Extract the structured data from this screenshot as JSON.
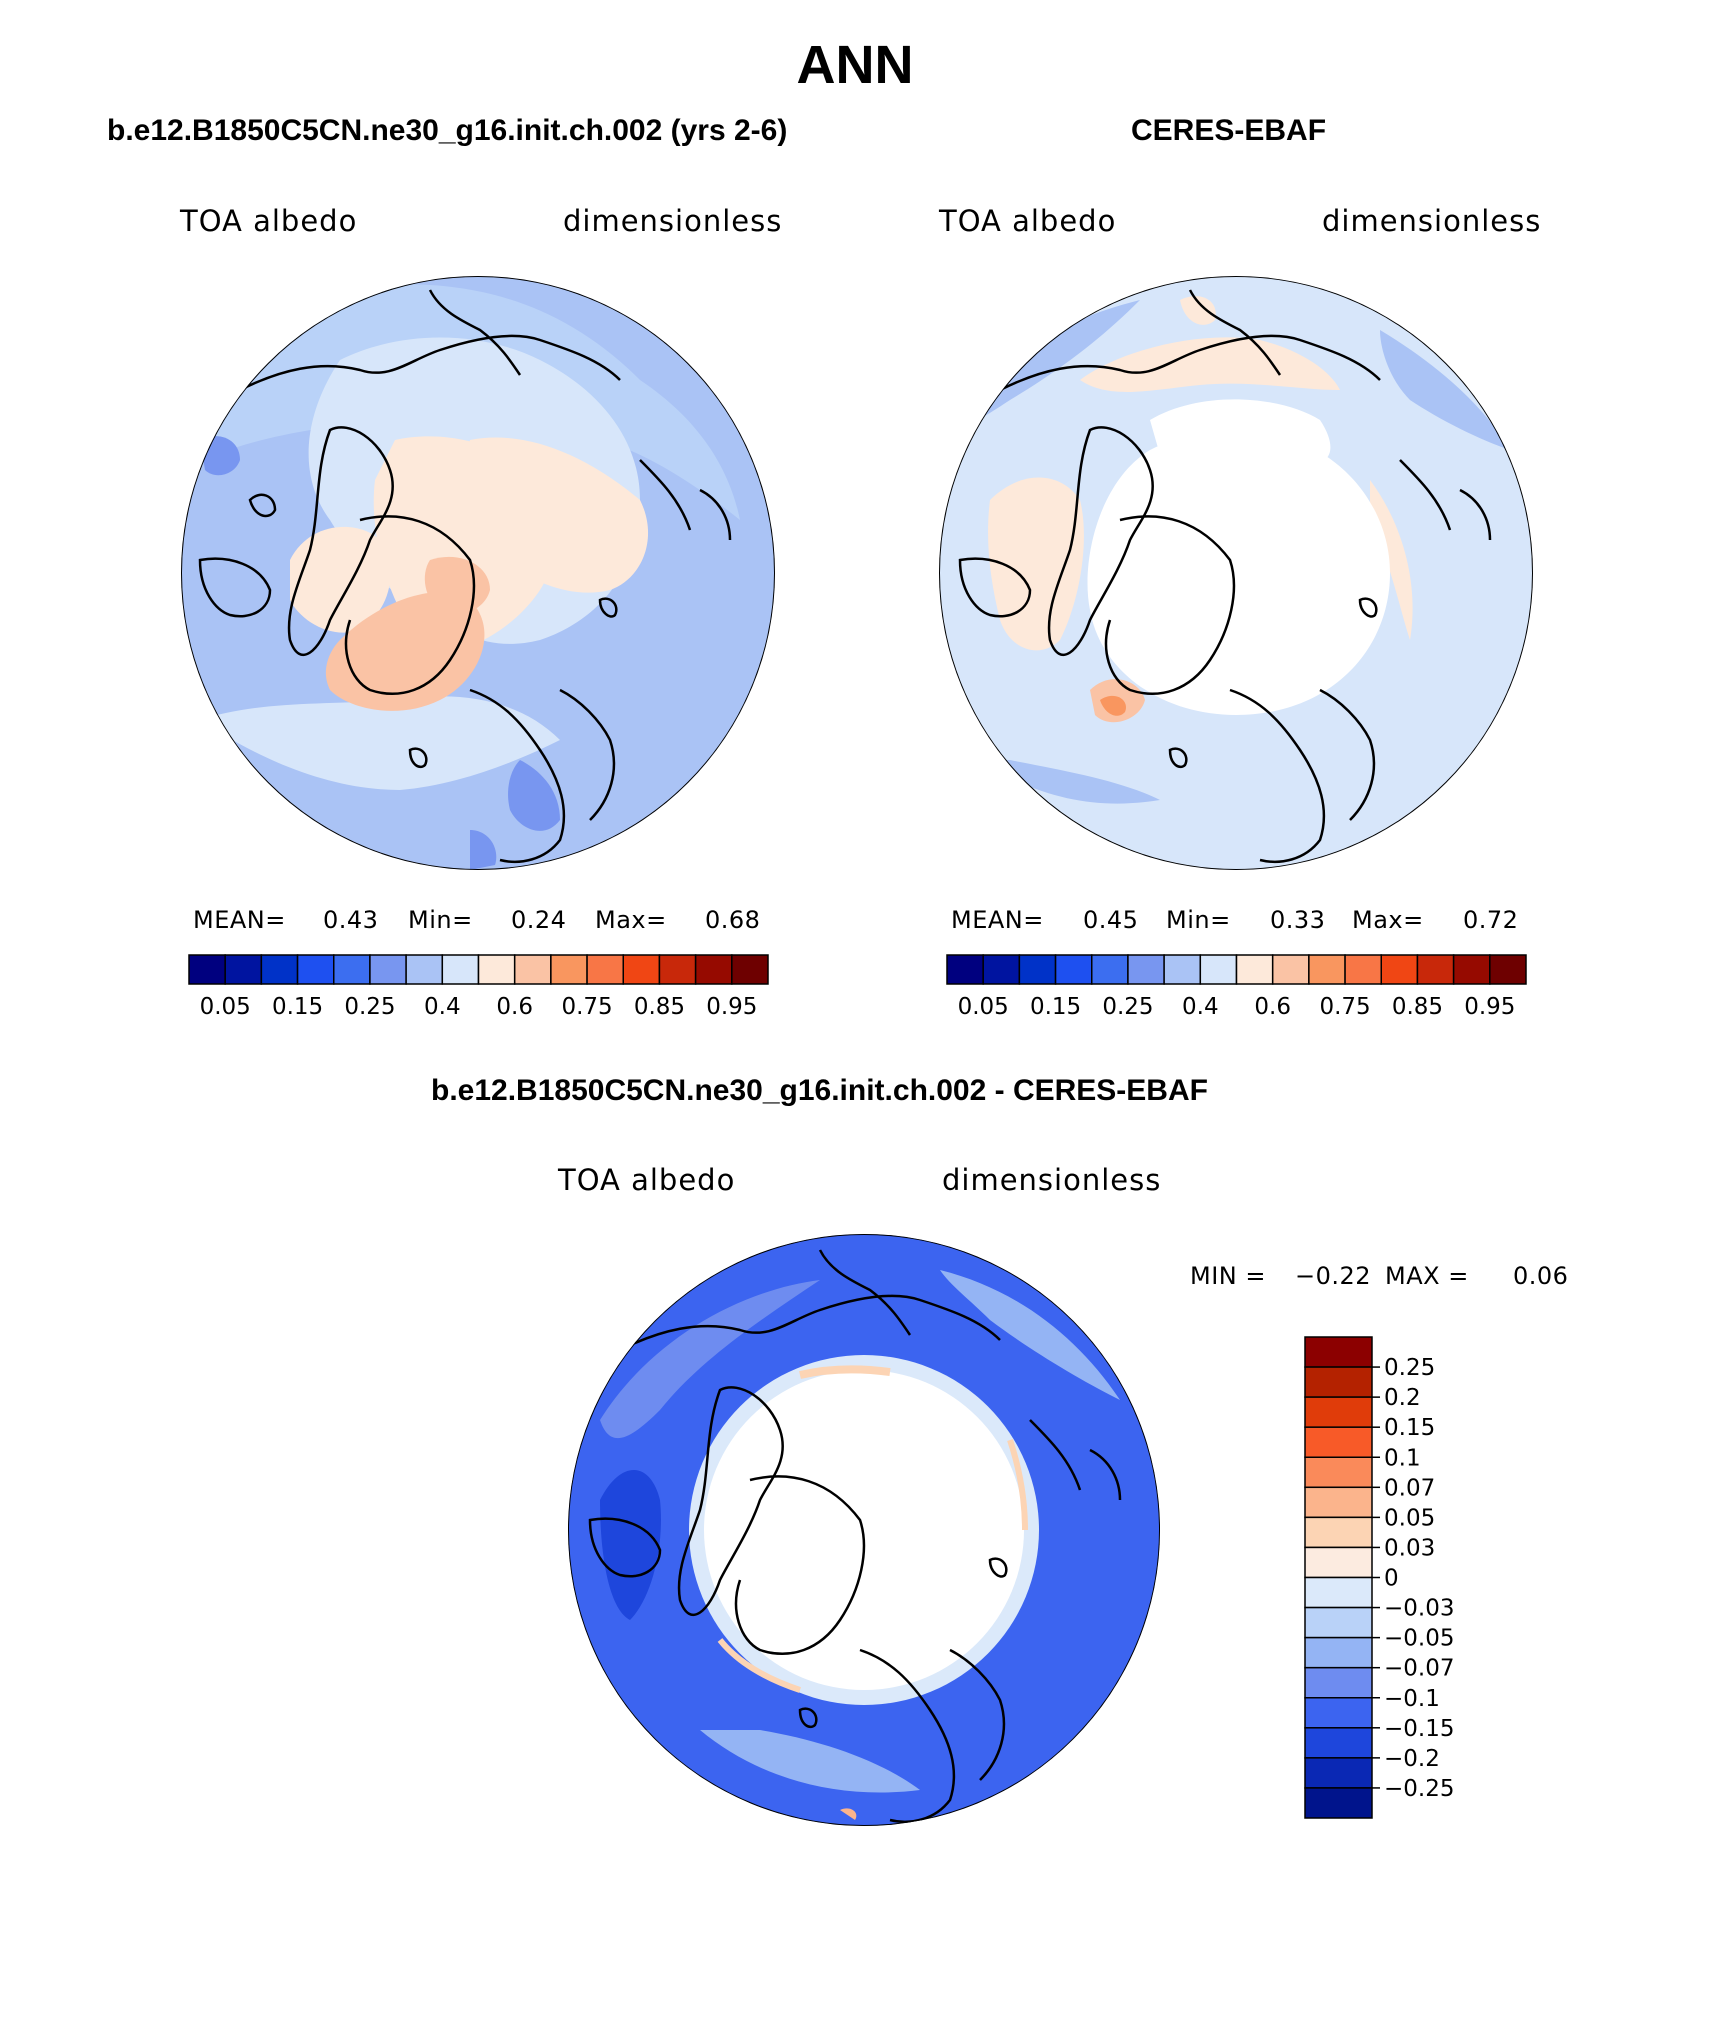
{
  "title": "ANN",
  "panels": [
    {
      "id": "model",
      "title": "b.e12.B1850C5CN.ne30_g16.init.ch.002 (yrs 2-6)",
      "left_label": "TOA albedo",
      "right_label": "dimensionless",
      "stats": {
        "mean_label": "MEAN=",
        "mean": "0.43",
        "min_label": "Min=",
        "min": "0.24",
        "max_label": "Max=",
        "max": "0.68"
      }
    },
    {
      "id": "obs",
      "title": "CERES-EBAF",
      "left_label": "TOA albedo",
      "right_label": "dimensionless",
      "stats": {
        "mean_label": "MEAN=",
        "mean": "0.45",
        "min_label": "Min=",
        "min": "0.33",
        "max_label": "Max=",
        "max": "0.72"
      }
    }
  ],
  "abs_colorbar": {
    "colors": [
      "#00007f",
      "#0014a0",
      "#0032c8",
      "#1e50f0",
      "#3c6ef0",
      "#7896f0",
      "#aac3f5",
      "#d7e6fa",
      "#fde9da",
      "#fac3a5",
      "#f9965f",
      "#f87646",
      "#f04614",
      "#c8280a",
      "#960a00",
      "#6e0000"
    ],
    "tick_labels": [
      "0.05",
      "0.15",
      "0.25",
      "0.4",
      "0.6",
      "0.75",
      "0.85",
      "0.95"
    ]
  },
  "diff_panel": {
    "title": "b.e12.B1850C5CN.ne30_g16.init.ch.002 - CERES-EBAF",
    "left_label": "TOA albedo",
    "right_label": "dimensionless",
    "minmax": {
      "min_label": "MIN =",
      "min": "−0.22",
      "max_label": "MAX =",
      "max": "0.06"
    }
  },
  "diff_colorbar": {
    "colors": [
      "#8c0000",
      "#b42200",
      "#e03c0a",
      "#f85a28",
      "#fa8a5a",
      "#fbb48c",
      "#fcd4b4",
      "#fcebe0",
      "#dbe9fa",
      "#b9d2f8",
      "#94b4f4",
      "#6e8cf0",
      "#3c64f0",
      "#1e46dc",
      "#0a28b4",
      "#00148c"
    ],
    "tick_labels": [
      "0.25",
      "0.2",
      "0.15",
      "0.1",
      "0.07",
      "0.05",
      "0.03",
      "0",
      "−0.03",
      "−0.05",
      "−0.07",
      "−0.1",
      "−0.15",
      "−0.2",
      "−0.25"
    ]
  }
}
